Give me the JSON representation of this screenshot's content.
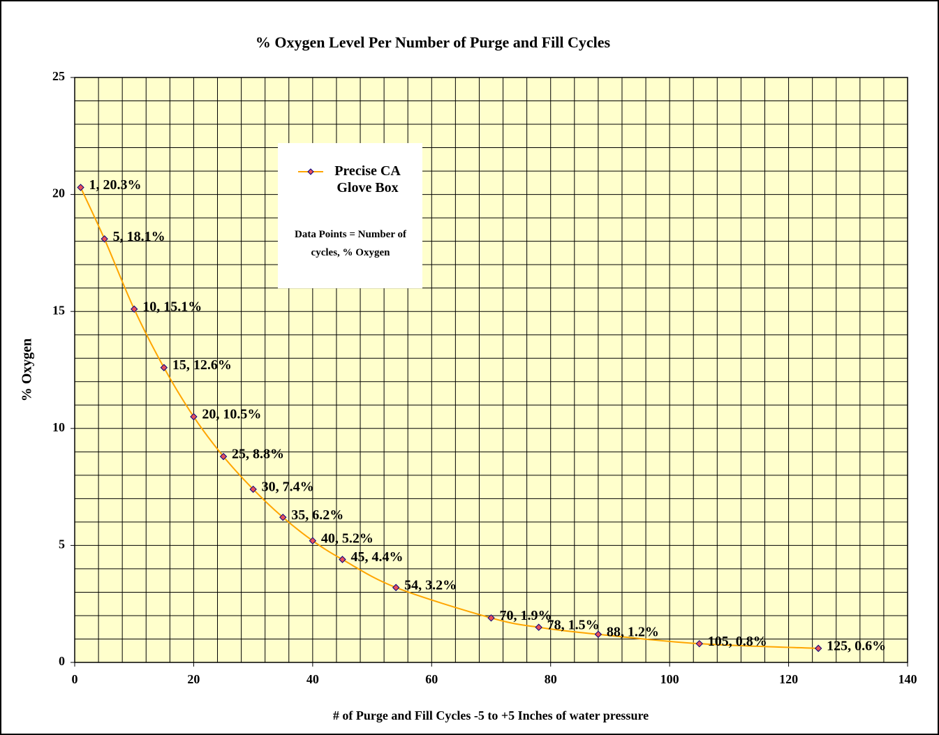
{
  "chart_data": {
    "type": "scatter",
    "title": "% Oxygen Level Per Number of Purge and Fill Cycles",
    "x_label": "# of Purge and Fill Cycles -5 to +5 Inches of water pressure",
    "y_label": "% Oxygen",
    "annotation": "Data Points = Number of cycles, % Oxygen",
    "xlim": [
      0,
      140
    ],
    "ylim": [
      0,
      25
    ],
    "xticks": [
      0,
      20,
      40,
      60,
      80,
      100,
      120,
      140
    ],
    "yticks": [
      0,
      5,
      10,
      15,
      20,
      25
    ],
    "x_minor_interval": 4,
    "y_minor_interval": 1,
    "grid": true,
    "background": "#ffffcc",
    "smooth": true,
    "series": [
      {
        "name": "Precise CA Glove Box",
        "color": "#ffa500",
        "marker_color": "#e8505a",
        "x": [
          1,
          5,
          10,
          15,
          20,
          25,
          30,
          35,
          40,
          45,
          54,
          70,
          78,
          88,
          105,
          125
        ],
        "values": [
          20.3,
          18.1,
          15.1,
          12.6,
          10.5,
          8.8,
          7.4,
          6.2,
          5.2,
          4.4,
          3.2,
          1.9,
          1.5,
          1.2,
          0.8,
          0.6
        ],
        "value_labels": [
          "1, 20.3%",
          "5, 18.1%",
          "10, 15.1%",
          "15, 12.6%",
          "20, 10.5%",
          "25, 8.8%",
          "30, 7.4%",
          "35, 6.2%",
          "40, 5.2%",
          "45, 4.4%",
          "54, 3.2%",
          "70, 1.9%",
          "78, 1.5%",
          "88, 1.2%",
          "105, 0.8%",
          "125, 0.6%"
        ]
      }
    ]
  }
}
